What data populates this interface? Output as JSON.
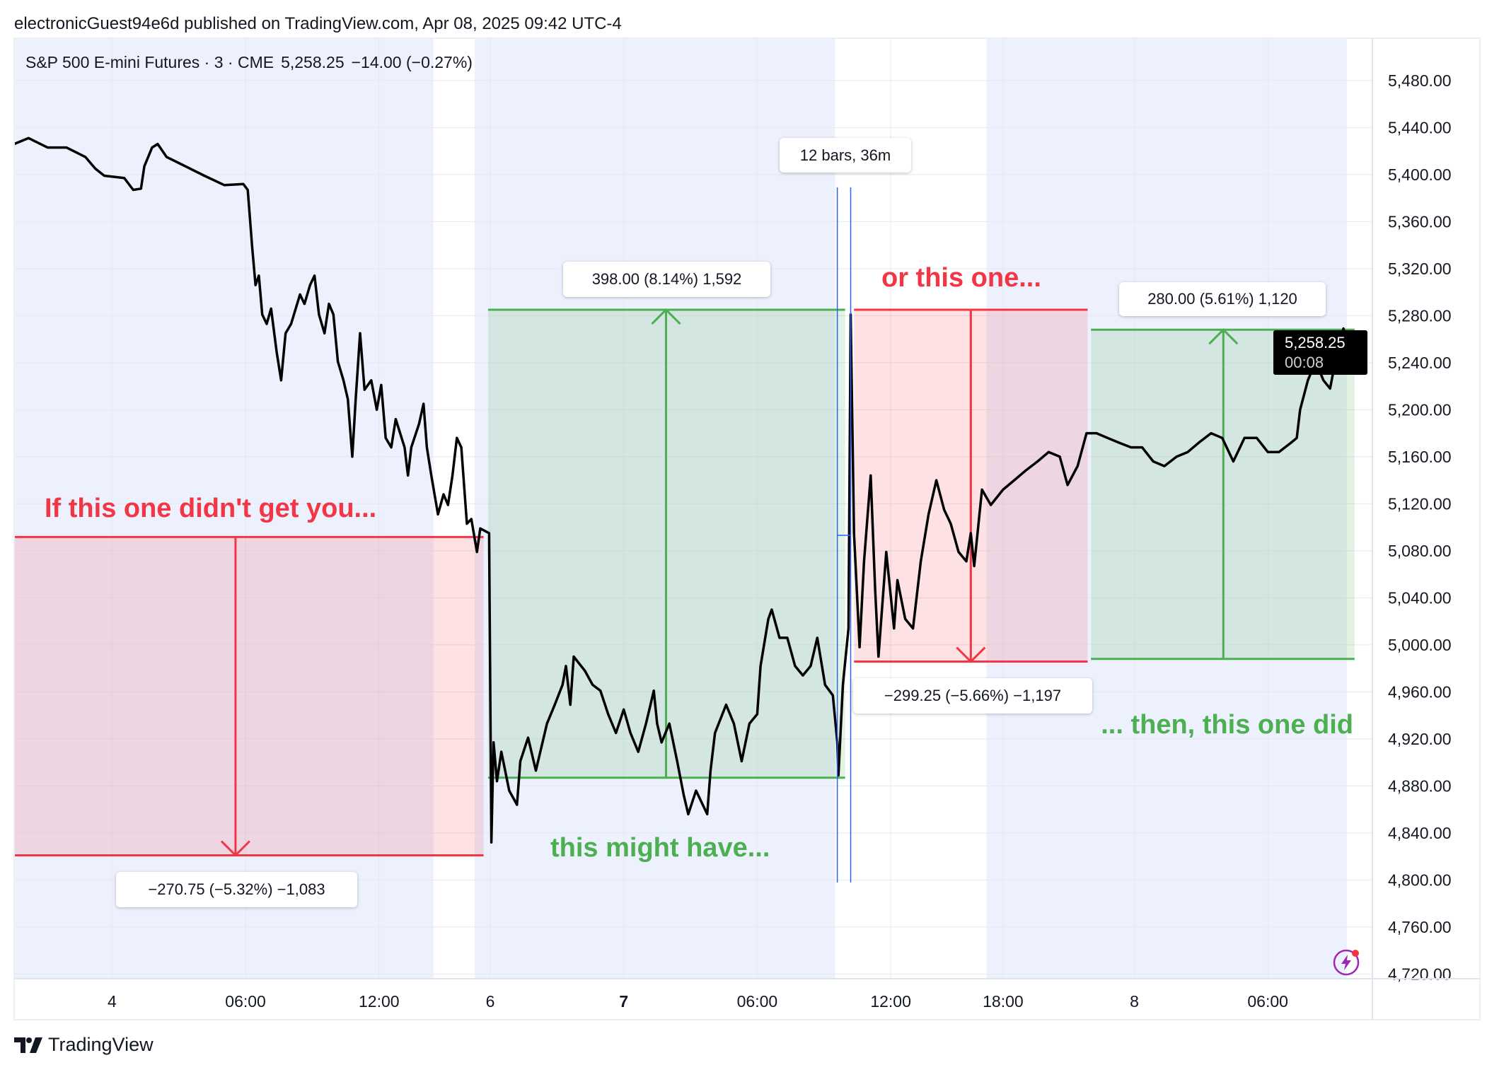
{
  "header": {
    "published": "electronicGuest94e6d published on TradingView.com, Apr 08, 2025 09:42 UTC-4"
  },
  "legend": {
    "symbol": "S&P 500 E-mini Futures · 3 · CME",
    "price": "5,258.25",
    "change": "−14.00 (−0.27%)"
  },
  "price_badge": {
    "price": "5,258.25",
    "countdown": "00:08"
  },
  "footer": {
    "brand": "TradingView"
  },
  "colors": {
    "line": "#000000",
    "red": "#f23645",
    "green": "#4caf50",
    "session_bg": "#edf1fd",
    "range_line": "#2962ff"
  },
  "annotations": {
    "a1": "If this one didn't get you...",
    "a2": "this might have...",
    "a3": "or this one...",
    "a4": "... then, this one did"
  },
  "measures": {
    "m1": "−270.75 (−5.32%) −1,083",
    "m2": "398.00 (8.14%) 1,592",
    "m3": "−299.25 (−5.66%) −1,197",
    "m4": "280.00 (5.61%) 1,120",
    "range": "12 bars, 36m"
  },
  "chart_data": {
    "type": "line",
    "title": "S&P 500 E-mini Futures · 3 · CME",
    "xlabel": "",
    "ylabel": "",
    "x_unit": "3-minute bar index",
    "xlim": [
      0,
      1221
    ],
    "ylim": [
      4716,
      5516
    ],
    "grid": true,
    "y_ticks": [
      "5,480.00",
      "5,440.00",
      "5,400.00",
      "5,360.00",
      "5,320.00",
      "5,280.00",
      "5,240.00",
      "5,200.00",
      "5,160.00",
      "5,120.00",
      "5,080.00",
      "5,040.00",
      "5,000.00",
      "4,960.00",
      "4,920.00",
      "4,880.00",
      "4,840.00",
      "4,800.00",
      "4,760.00",
      "4,720.00"
    ],
    "y_tick_values": [
      5480,
      5440,
      5400,
      5360,
      5320,
      5280,
      5240,
      5200,
      5160,
      5120,
      5080,
      5040,
      5000,
      4960,
      4920,
      4880,
      4840,
      4800,
      4760,
      4720
    ],
    "x_ticks": [
      {
        "label": "4",
        "x": 88,
        "bold": false
      },
      {
        "label": "06:00",
        "x": 208,
        "bold": false
      },
      {
        "label": "12:00",
        "x": 328,
        "bold": false
      },
      {
        "label": "6",
        "x": 428,
        "bold": false
      },
      {
        "label": "7",
        "x": 548,
        "bold": true
      },
      {
        "label": "06:00",
        "x": 668,
        "bold": false
      },
      {
        "label": "12:00",
        "x": 788,
        "bold": false
      },
      {
        "label": "18:00",
        "x": 889,
        "bold": false
      },
      {
        "label": "8",
        "x": 1007,
        "bold": false
      },
      {
        "label": "06:00",
        "x": 1127,
        "bold": false
      }
    ],
    "sessions": [
      [
        0,
        377
      ],
      [
        563,
        1000
      ],
      [
        1187,
        1186
      ]
    ],
    "session_bars": [
      [
        0,
        377
      ],
      [
        414,
        738
      ],
      [
        874,
        1198
      ]
    ],
    "series": [
      {
        "name": "ES 3m close",
        "points": [
          [
            0,
            5426
          ],
          [
            13,
            5431
          ],
          [
            30,
            5423
          ],
          [
            47,
            5423
          ],
          [
            64,
            5415
          ],
          [
            73,
            5405
          ],
          [
            81,
            5399
          ],
          [
            99,
            5397
          ],
          [
            107,
            5387
          ],
          [
            114,
            5388
          ],
          [
            117,
            5407
          ],
          [
            124,
            5423
          ],
          [
            129,
            5426
          ],
          [
            137,
            5415
          ],
          [
            154,
            5407
          ],
          [
            171,
            5399
          ],
          [
            189,
            5391
          ],
          [
            206,
            5392
          ],
          [
            210,
            5387
          ],
          [
            214,
            5338
          ],
          [
            217,
            5306
          ],
          [
            220,
            5314
          ],
          [
            223,
            5281
          ],
          [
            227,
            5273
          ],
          [
            231,
            5286
          ],
          [
            236,
            5249
          ],
          [
            240,
            5225
          ],
          [
            244,
            5265
          ],
          [
            249,
            5273
          ],
          [
            257,
            5298
          ],
          [
            261,
            5290
          ],
          [
            266,
            5306
          ],
          [
            270,
            5314
          ],
          [
            274,
            5281
          ],
          [
            279,
            5265
          ],
          [
            283,
            5290
          ],
          [
            287,
            5281
          ],
          [
            291,
            5241
          ],
          [
            296,
            5225
          ],
          [
            300,
            5209
          ],
          [
            304,
            5160
          ],
          [
            307,
            5209
          ],
          [
            311,
            5265
          ],
          [
            315,
            5217
          ],
          [
            321,
            5225
          ],
          [
            326,
            5200
          ],
          [
            330,
            5221
          ],
          [
            334,
            5176
          ],
          [
            339,
            5168
          ],
          [
            343,
            5192
          ],
          [
            351,
            5168
          ],
          [
            354,
            5144
          ],
          [
            357,
            5168
          ],
          [
            364,
            5188
          ],
          [
            368,
            5205
          ],
          [
            371,
            5168
          ],
          [
            375,
            5144
          ],
          [
            381,
            5111
          ],
          [
            386,
            5128
          ],
          [
            390,
            5119
          ],
          [
            394,
            5144
          ],
          [
            398,
            5176
          ],
          [
            402,
            5168
          ],
          [
            407,
            5103
          ],
          [
            411,
            5107
          ],
          [
            416,
            5079
          ],
          [
            419,
            5099
          ],
          [
            427,
            5095
          ],
          [
            429,
            4832
          ],
          [
            431,
            4917
          ],
          [
            434,
            4884
          ],
          [
            438,
            4909
          ],
          [
            445,
            4876
          ],
          [
            452,
            4864
          ],
          [
            455,
            4901
          ],
          [
            462,
            4921
          ],
          [
            469,
            4893
          ],
          [
            479,
            4933
          ],
          [
            486,
            4949
          ],
          [
            493,
            4966
          ],
          [
            496,
            4982
          ],
          [
            500,
            4949
          ],
          [
            503,
            4990
          ],
          [
            513,
            4978
          ],
          [
            520,
            4966
          ],
          [
            527,
            4961
          ],
          [
            534,
            4941
          ],
          [
            541,
            4925
          ],
          [
            548,
            4945
          ],
          [
            554,
            4925
          ],
          [
            561,
            4909
          ],
          [
            568,
            4933
          ],
          [
            575,
            4961
          ],
          [
            578,
            4933
          ],
          [
            582,
            4917
          ],
          [
            589,
            4933
          ],
          [
            596,
            4901
          ],
          [
            602,
            4872
          ],
          [
            606,
            4856
          ],
          [
            613,
            4876
          ],
          [
            623,
            4856
          ],
          [
            626,
            4893
          ],
          [
            630,
            4925
          ],
          [
            640,
            4949
          ],
          [
            647,
            4933
          ],
          [
            654,
            4901
          ],
          [
            661,
            4933
          ],
          [
            668,
            4941
          ],
          [
            671,
            4982
          ],
          [
            678,
            5022
          ],
          [
            681,
            5030
          ],
          [
            688,
            5006
          ],
          [
            695,
            5006
          ],
          [
            702,
            4982
          ],
          [
            709,
            4974
          ],
          [
            716,
            4982
          ],
          [
            722,
            5006
          ],
          [
            729,
            4966
          ],
          [
            736,
            4957
          ],
          [
            740,
            4917
          ],
          [
            741,
            4889
          ],
          [
            745,
            4966
          ],
          [
            750,
            5014
          ],
          [
            752,
            5281
          ],
          [
            755,
            5095
          ],
          [
            760,
            4998
          ],
          [
            764,
            5071
          ],
          [
            770,
            5144
          ],
          [
            774,
            5047
          ],
          [
            777,
            4990
          ],
          [
            784,
            5079
          ],
          [
            791,
            5014
          ],
          [
            794,
            5055
          ],
          [
            801,
            5022
          ],
          [
            808,
            5014
          ],
          [
            815,
            5071
          ],
          [
            822,
            5111
          ],
          [
            829,
            5140
          ],
          [
            836,
            5115
          ],
          [
            842,
            5103
          ],
          [
            849,
            5079
          ],
          [
            856,
            5071
          ],
          [
            860,
            5095
          ],
          [
            863,
            5067
          ],
          [
            870,
            5132
          ],
          [
            878,
            5119
          ],
          [
            889,
            5132
          ],
          [
            899,
            5140
          ],
          [
            909,
            5148
          ],
          [
            920,
            5156
          ],
          [
            930,
            5164
          ],
          [
            940,
            5160
          ],
          [
            947,
            5136
          ],
          [
            956,
            5152
          ],
          [
            964,
            5180
          ],
          [
            973,
            5180
          ],
          [
            983,
            5176
          ],
          [
            993,
            5172
          ],
          [
            1004,
            5168
          ],
          [
            1014,
            5168
          ],
          [
            1024,
            5156
          ],
          [
            1034,
            5152
          ],
          [
            1045,
            5160
          ],
          [
            1055,
            5164
          ],
          [
            1065,
            5172
          ],
          [
            1076,
            5180
          ],
          [
            1086,
            5176
          ],
          [
            1096,
            5156
          ],
          [
            1106,
            5176
          ],
          [
            1117,
            5176
          ],
          [
            1127,
            5164
          ],
          [
            1137,
            5164
          ],
          [
            1148,
            5172
          ],
          [
            1153,
            5176
          ],
          [
            1156,
            5200
          ],
          [
            1163,
            5225
          ],
          [
            1170,
            5241
          ],
          [
            1177,
            5225
          ],
          [
            1183,
            5218
          ],
          [
            1190,
            5253
          ],
          [
            1195,
            5269
          ],
          [
            1198,
            5258
          ]
        ]
      }
    ],
    "price_ranges": [
      {
        "name": "drop-1",
        "x0": 0,
        "x1": 422,
        "from": 5091.75,
        "to": 4821,
        "arrow_x": 199,
        "color": "red",
        "label": "−270.75 (−5.32%) −1,083"
      },
      {
        "name": "rally-1",
        "x0": 426,
        "x1": 747,
        "from": 4887,
        "to": 5285,
        "arrow_x": 586,
        "color": "green",
        "label": "398.00 (8.14%) 1,592"
      },
      {
        "name": "drop-2",
        "x0": 755,
        "x1": 965,
        "from": 5285,
        "to": 4985.75,
        "arrow_x": 860,
        "color": "red",
        "label": "−299.25 (−5.66%) −1,197"
      },
      {
        "name": "rally-2",
        "x0": 968,
        "x1": 1205,
        "from": 4988,
        "to": 5268,
        "arrow_x": 1087,
        "color": "green",
        "label": "280.00 (5.61%) 1,120"
      }
    ],
    "date_range": {
      "x0": 740,
      "x1": 752,
      "label": "12 bars, 36m"
    },
    "last_price": 5258.25
  }
}
